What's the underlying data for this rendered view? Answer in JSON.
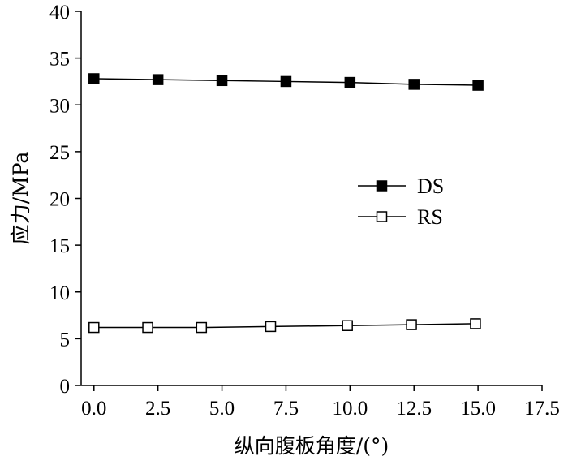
{
  "chart_data": {
    "type": "line",
    "title": "",
    "xlabel": "纵向腹板角度/(°)",
    "ylabel": "应力/MPa",
    "xlim": [
      -0.5,
      17.5
    ],
    "ylim": [
      0,
      40
    ],
    "x_ticks": [
      "0.0",
      "2.5",
      "5.0",
      "7.5",
      "10.0",
      "12.5",
      "15.0",
      "17.5"
    ],
    "y_ticks": [
      "0",
      "5",
      "10",
      "15",
      "20",
      "25",
      "30",
      "35",
      "40"
    ],
    "grid": false,
    "legend_position": "center-right",
    "series": [
      {
        "name": "DS",
        "marker": "filled-square",
        "color": "#000000",
        "x": [
          0,
          2.5,
          5,
          7.5,
          10,
          12.5,
          15
        ],
        "y": [
          32.8,
          32.7,
          32.6,
          32.5,
          32.4,
          32.2,
          32.1
        ]
      },
      {
        "name": "RS",
        "marker": "open-square",
        "color": "#000000",
        "x": [
          0,
          2.1,
          4.2,
          6.9,
          9.9,
          12.4,
          14.9
        ],
        "y": [
          6.2,
          6.2,
          6.2,
          6.3,
          6.4,
          6.5,
          6.6
        ]
      }
    ]
  }
}
